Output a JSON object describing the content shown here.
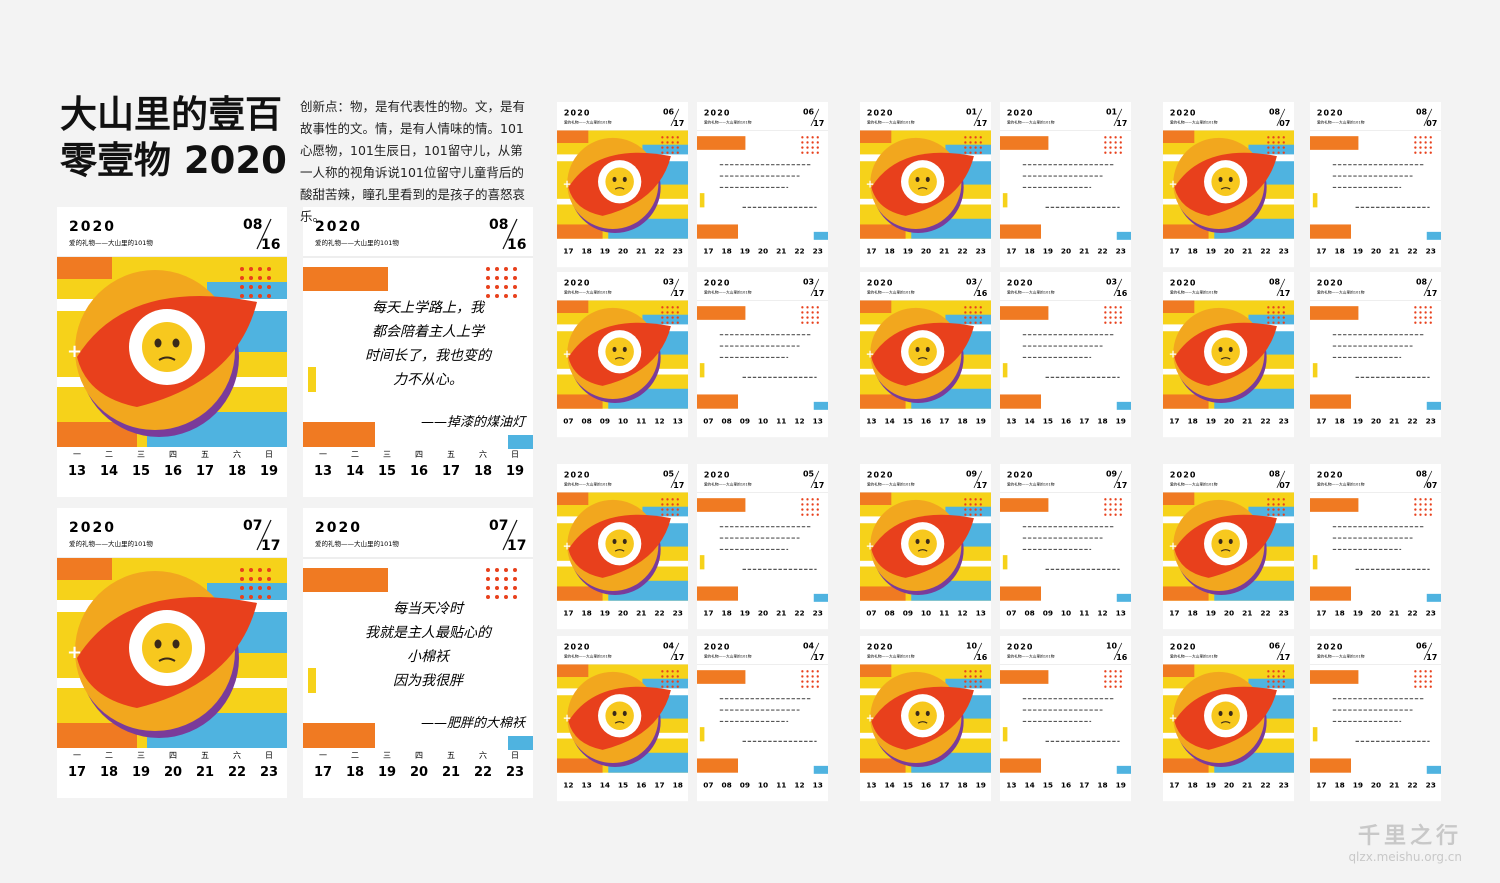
{
  "header": {
    "title_lines": [
      "大山里的壹百",
      "零壹物 2020"
    ],
    "description": "创新点：物，是有代表性的物。文，是有故事性的文。情，是有人情味的情。101心愿物，101生辰日，101留守儿，从第一人称的视角诉说101位留守儿童背后的酸甜苦辣，瞳孔里看到的是孩子的喜怒哀乐。"
  },
  "common": {
    "year": "2020",
    "subtitle": "爱的礼物——大山里的101物",
    "weekdays": [
      "一",
      "二",
      "三",
      "四",
      "五",
      "六",
      "日"
    ]
  },
  "large_cards": [
    {
      "kind": "photo",
      "month": "08",
      "day": "16",
      "days": [
        "13",
        "14",
        "15",
        "16",
        "17",
        "18",
        "19"
      ]
    },
    {
      "kind": "quote",
      "month": "08",
      "day": "16",
      "days": [
        "13",
        "14",
        "15",
        "16",
        "17",
        "18",
        "19"
      ],
      "quote": [
        "每天上学路上，我",
        "都会陪着主人上学",
        "时间长了，我也变的",
        "力不从心。"
      ],
      "signature": "——掉漆的煤油灯"
    },
    {
      "kind": "photo",
      "month": "07",
      "day": "17",
      "days": [
        "17",
        "18",
        "19",
        "20",
        "21",
        "22",
        "23"
      ]
    },
    {
      "kind": "quote",
      "month": "07",
      "day": "17",
      "days": [
        "17",
        "18",
        "19",
        "20",
        "21",
        "22",
        "23"
      ],
      "quote": [
        "每当天冷时",
        "我就是主人最贴心的",
        "小棉袄",
        "因为我很胖"
      ],
      "signature": "——肥胖的大棉袄"
    }
  ],
  "small_cards": [
    {
      "kind": "photo",
      "month": "06",
      "day": "17",
      "days": [
        "17",
        "18",
        "19",
        "20",
        "21",
        "22",
        "23"
      ]
    },
    {
      "kind": "quote",
      "month": "06",
      "day": "17",
      "days": [
        "17",
        "18",
        "19",
        "20",
        "21",
        "22",
        "23"
      ]
    },
    {
      "kind": "photo",
      "month": "03",
      "day": "17",
      "days": [
        "07",
        "08",
        "09",
        "10",
        "11",
        "12",
        "13"
      ]
    },
    {
      "kind": "quote",
      "month": "03",
      "day": "17",
      "days": [
        "07",
        "08",
        "09",
        "10",
        "11",
        "12",
        "13"
      ]
    },
    {
      "kind": "photo",
      "month": "05",
      "day": "17",
      "days": [
        "17",
        "18",
        "19",
        "20",
        "21",
        "22",
        "23"
      ]
    },
    {
      "kind": "quote",
      "month": "05",
      "day": "17",
      "days": [
        "17",
        "18",
        "19",
        "20",
        "21",
        "22",
        "23"
      ]
    },
    {
      "kind": "photo",
      "month": "04",
      "day": "17",
      "days": [
        "12",
        "13",
        "14",
        "15",
        "16",
        "17",
        "18"
      ]
    },
    {
      "kind": "quote",
      "month": "04",
      "day": "17",
      "days": [
        "07",
        "08",
        "09",
        "10",
        "11",
        "12",
        "13"
      ]
    },
    {
      "kind": "photo",
      "month": "01",
      "day": "17",
      "days": [
        "17",
        "18",
        "19",
        "20",
        "21",
        "22",
        "23"
      ]
    },
    {
      "kind": "quote",
      "month": "01",
      "day": "17",
      "days": [
        "17",
        "18",
        "19",
        "20",
        "21",
        "22",
        "23"
      ]
    },
    {
      "kind": "photo",
      "month": "03",
      "day": "16",
      "days": [
        "13",
        "14",
        "15",
        "16",
        "17",
        "18",
        "19"
      ]
    },
    {
      "kind": "quote",
      "month": "03",
      "day": "16",
      "days": [
        "13",
        "14",
        "15",
        "16",
        "17",
        "18",
        "19"
      ]
    },
    {
      "kind": "photo",
      "month": "09",
      "day": "17",
      "days": [
        "07",
        "08",
        "09",
        "10",
        "11",
        "12",
        "13"
      ]
    },
    {
      "kind": "quote",
      "month": "09",
      "day": "17",
      "days": [
        "07",
        "08",
        "09",
        "10",
        "11",
        "12",
        "13"
      ]
    },
    {
      "kind": "photo",
      "month": "10",
      "day": "16",
      "days": [
        "13",
        "14",
        "15",
        "16",
        "17",
        "18",
        "19"
      ]
    },
    {
      "kind": "quote",
      "month": "10",
      "day": "16",
      "days": [
        "13",
        "14",
        "15",
        "16",
        "17",
        "18",
        "19"
      ]
    },
    {
      "kind": "photo",
      "month": "08",
      "day": "07",
      "days": [
        "17",
        "18",
        "19",
        "20",
        "21",
        "22",
        "23"
      ]
    },
    {
      "kind": "quote",
      "month": "08",
      "day": "07",
      "days": [
        "17",
        "18",
        "19",
        "20",
        "21",
        "22",
        "23"
      ]
    },
    {
      "kind": "photo",
      "month": "08",
      "day": "17",
      "days": [
        "17",
        "18",
        "19",
        "20",
        "21",
        "22",
        "23"
      ]
    },
    {
      "kind": "quote",
      "month": "08",
      "day": "17",
      "days": [
        "17",
        "18",
        "19",
        "20",
        "21",
        "22",
        "23"
      ]
    },
    {
      "kind": "photo",
      "month": "08",
      "day": "07",
      "days": [
        "17",
        "18",
        "19",
        "20",
        "21",
        "22",
        "23"
      ]
    },
    {
      "kind": "quote",
      "month": "08",
      "day": "07",
      "days": [
        "17",
        "18",
        "19",
        "20",
        "21",
        "22",
        "23"
      ]
    },
    {
      "kind": "photo",
      "month": "06",
      "day": "17",
      "days": [
        "17",
        "18",
        "19",
        "20",
        "21",
        "22",
        "23"
      ]
    },
    {
      "kind": "quote",
      "month": "06",
      "day": "17",
      "days": [
        "17",
        "18",
        "19",
        "20",
        "21",
        "22",
        "23"
      ]
    }
  ],
  "watermark": {
    "logo": "千里之行",
    "url": "qlzx.meishu.org.cn"
  }
}
